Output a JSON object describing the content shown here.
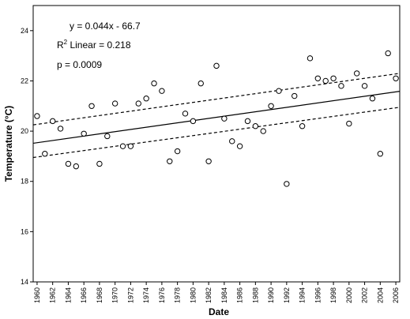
{
  "chart_data": {
    "type": "scatter",
    "xlabel": "Date",
    "ylabel": "Temperature (°C)",
    "xlim": [
      1959.5,
      2006.5
    ],
    "ylim": [
      14,
      25
    ],
    "x_ticks": [
      "1960",
      "1962",
      "1964",
      "1966",
      "1968",
      "1970",
      "1972",
      "1974",
      "1976",
      "1978",
      "1980",
      "1982",
      "1984",
      "1986",
      "1988",
      "1990",
      "1992",
      "1994",
      "1996",
      "1998",
      "2000",
      "2002",
      "2004",
      "2006"
    ],
    "y_ticks": [
      14,
      16,
      18,
      20,
      22,
      24
    ],
    "grid": false,
    "legend": "none",
    "series": [
      {
        "marker": "open-circle",
        "x": [
          1960,
          1961,
          1962,
          1963,
          1964,
          1965,
          1966,
          1967,
          1968,
          1969,
          1970,
          1971,
          1972,
          1973,
          1974,
          1975,
          1976,
          1977,
          1978,
          1979,
          1980,
          1981,
          1982,
          1983,
          1984,
          1985,
          1986,
          1987,
          1988,
          1989,
          1990,
          1991,
          1992,
          1993,
          1994,
          1995,
          1996,
          1997,
          1998,
          1999,
          2000,
          2001,
          2002,
          2003,
          2004,
          2005,
          2006
        ],
        "y": [
          20.6,
          19.1,
          20.4,
          20.1,
          18.7,
          18.6,
          19.9,
          21.0,
          18.7,
          19.8,
          21.1,
          19.4,
          19.4,
          21.1,
          21.3,
          21.9,
          21.6,
          18.8,
          19.2,
          20.7,
          20.4,
          21.9,
          18.8,
          22.6,
          20.5,
          19.6,
          19.4,
          20.4,
          20.2,
          20.0,
          21.0,
          21.6,
          17.9,
          21.4,
          20.2,
          22.9,
          22.1,
          22.0,
          22.1,
          21.8,
          20.3,
          22.3,
          21.8,
          21.3,
          19.1,
          23.1,
          22.1
        ]
      }
    ],
    "regression": {
      "slope": 0.044,
      "intercept": -66.7,
      "line_style": "solid",
      "ci_style": "dashed",
      "ci_lower": [
        [
          1959.5,
          18.95
        ],
        [
          2006.5,
          20.95
        ]
      ],
      "ci_upper": [
        [
          1959.5,
          20.25
        ],
        [
          2006.5,
          22.3
        ]
      ]
    },
    "annotations": {
      "equation": "y = 0.044x - 66.7",
      "r2_prefix": "R",
      "r2_sup": "2",
      "r2_suffix": " Linear = 0.218",
      "p_value": "p = 0.0009"
    }
  }
}
